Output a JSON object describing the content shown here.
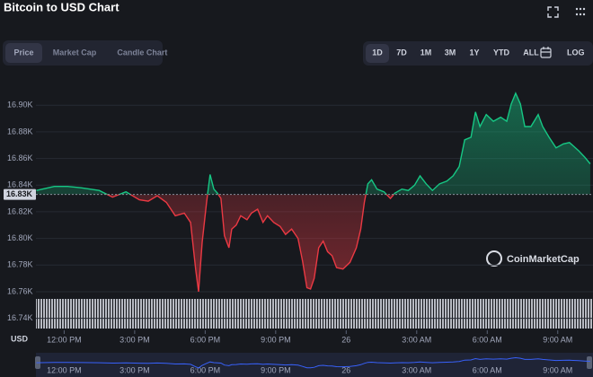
{
  "header": {
    "title": "Bitcoin to USD Chart"
  },
  "tabs": [
    "Price",
    "Market Cap",
    "Candle Chart"
  ],
  "ranges": [
    "1D",
    "7D",
    "1M",
    "3M",
    "1Y",
    "YTD",
    "ALL"
  ],
  "log": "LOG",
  "chart_data": {
    "type": "line",
    "currency": "USD",
    "watermark": "CoinMarketCap",
    "x": [
      10.82,
      11.58,
      12.15,
      12.72,
      13.49,
      14.06,
      14.63,
      15.2,
      15.58,
      15.96,
      16.35,
      16.73,
      17.11,
      17.38,
      17.6,
      17.72,
      17.87,
      18.06,
      18.21,
      18.37,
      18.52,
      18.67,
      18.82,
      19.01,
      19.13,
      19.32,
      19.51,
      19.78,
      19.97,
      20.23,
      20.46,
      20.65,
      20.92,
      21.19,
      21.42,
      21.68,
      21.95,
      22.14,
      22.33,
      22.48,
      22.64,
      22.83,
      23.02,
      23.21,
      23.4,
      23.59,
      23.86,
      24.16,
      24.43,
      24.62,
      24.77,
      24.92,
      25.08,
      25.31,
      25.61,
      25.88,
      26.07,
      26.37,
      26.64,
      26.91,
      27.14,
      27.4,
      27.67,
      27.97,
      28.28,
      28.55,
      28.81,
      29.04,
      29.31,
      29.5,
      29.69,
      29.96,
      30.26,
      30.57,
      30.83,
      31.02,
      31.21,
      31.41,
      31.6,
      31.86,
      32.17,
      32.36,
      32.63,
      32.93,
      33.24,
      33.5,
      33.88,
      34.15,
      34.38
    ],
    "series": [
      {
        "name": "Price",
        "color": "#16c784",
        "below_color": "#ea3943",
        "values": [
          16836,
          16839,
          16839,
          16838,
          16836,
          16831,
          16835,
          16829,
          16828,
          16832,
          16827,
          16817,
          16819,
          16812,
          16776,
          16760,
          16797,
          16827,
          16848,
          16837,
          16834,
          16830,
          16802,
          16793,
          16807,
          16810,
          16817,
          16814,
          16819,
          16822,
          16812,
          16817,
          16812,
          16809,
          16803,
          16807,
          16800,
          16783,
          16763,
          16762,
          16770,
          16793,
          16798,
          16790,
          16787,
          16778,
          16777,
          16782,
          16793,
          16807,
          16827,
          16841,
          16844,
          16837,
          16835,
          16830,
          16834,
          16837,
          16836,
          16840,
          16847,
          16841,
          16836,
          16841,
          16843,
          16847,
          16854,
          16874,
          16876,
          16895,
          16884,
          16893,
          16888,
          16891,
          16888,
          16901,
          16909,
          16901,
          16884,
          16884,
          16893,
          16884,
          16876,
          16868,
          16871,
          16872,
          16866,
          16861,
          16856
        ]
      }
    ],
    "reference_line": {
      "value": 16833,
      "label": "16.83K"
    },
    "xlim": [
      10.8,
      34.5
    ],
    "ylim": [
      16733,
      16915
    ],
    "xticks": [
      {
        "value": 12,
        "label": "12:00 PM"
      },
      {
        "value": 15,
        "label": "3:00 PM"
      },
      {
        "value": 18,
        "label": "6:00 PM"
      },
      {
        "value": 21,
        "label": "9:00 PM"
      },
      {
        "value": 24,
        "label": "26"
      },
      {
        "value": 27,
        "label": "3:00 AM"
      },
      {
        "value": 30,
        "label": "6:00 AM"
      },
      {
        "value": 33,
        "label": "9:00 AM"
      }
    ],
    "yticks": [
      {
        "value": 16740,
        "label": "16.74K"
      },
      {
        "value": 16760,
        "label": "16.76K"
      },
      {
        "value": 16780,
        "label": "16.78K"
      },
      {
        "value": 16800,
        "label": "16.80K"
      },
      {
        "value": 16820,
        "label": "16.82K"
      },
      {
        "value": 16840,
        "label": "16.84K"
      },
      {
        "value": 16860,
        "label": "16.86K"
      },
      {
        "value": 16880,
        "label": "16.88K"
      },
      {
        "value": 16900,
        "label": "16.90K"
      }
    ],
    "grid": true
  }
}
